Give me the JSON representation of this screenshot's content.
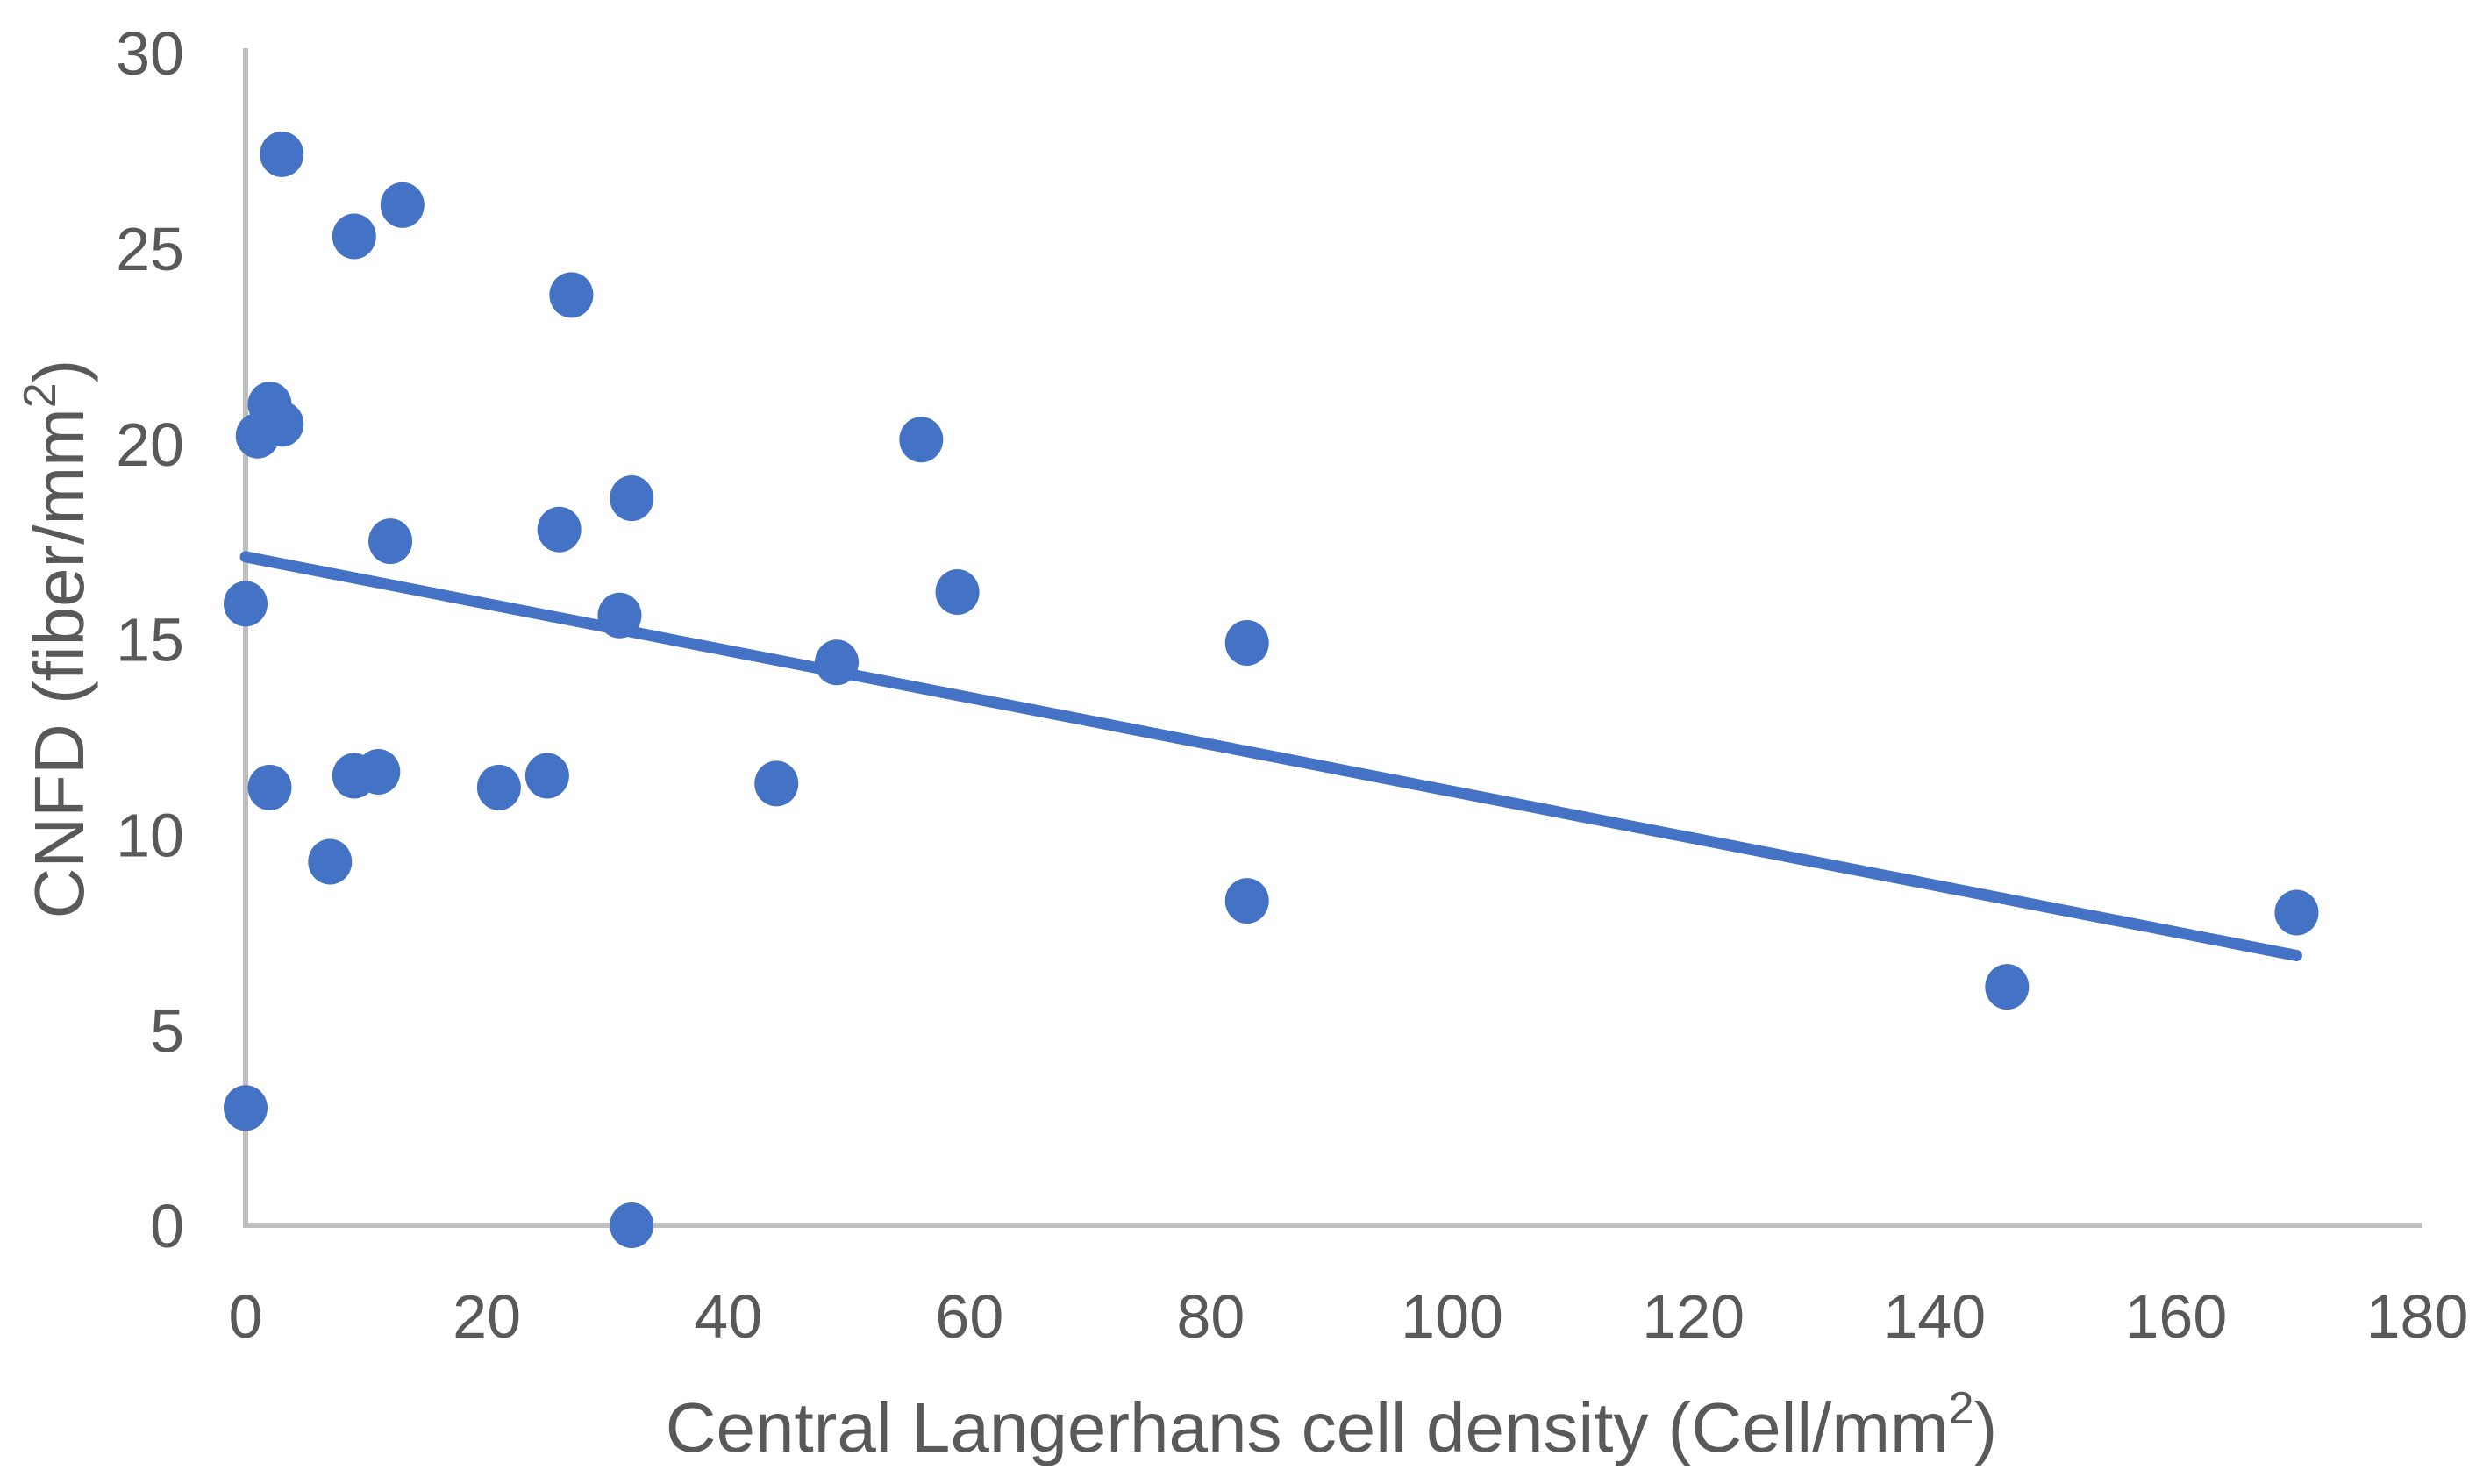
{
  "chart_data": {
    "type": "scatter",
    "title": "",
    "xlabel": {
      "text": "Central Langerhans cell density (Cell/mm",
      "sup": "2",
      "suffix": ")"
    },
    "ylabel": {
      "text": "CNFD (fiber/mm",
      "sup": "2",
      "suffix": ")"
    },
    "xlim": [
      0,
      180
    ],
    "ylim": [
      0,
      30
    ],
    "x_ticks": [
      0,
      20,
      40,
      60,
      80,
      100,
      120,
      140,
      160,
      180
    ],
    "y_ticks": [
      0,
      5,
      10,
      15,
      20,
      25,
      30
    ],
    "grid": false,
    "legend": "none",
    "marker_shape": "circle",
    "points": [
      {
        "x": 3,
        "y": 27.4
      },
      {
        "x": 9,
        "y": 25.3
      },
      {
        "x": 13,
        "y": 26.1
      },
      {
        "x": 27,
        "y": 23.8
      },
      {
        "x": 2,
        "y": 21.0
      },
      {
        "x": 3,
        "y": 20.5
      },
      {
        "x": 1,
        "y": 20.2
      },
      {
        "x": 56,
        "y": 20.1
      },
      {
        "x": 32,
        "y": 18.6
      },
      {
        "x": 26,
        "y": 17.8
      },
      {
        "x": 12,
        "y": 17.5
      },
      {
        "x": 59,
        "y": 16.2
      },
      {
        "x": 0,
        "y": 15.9
      },
      {
        "x": 31,
        "y": 15.6
      },
      {
        "x": 83,
        "y": 14.9
      },
      {
        "x": 49,
        "y": 14.4
      },
      {
        "x": 2,
        "y": 11.2
      },
      {
        "x": 9,
        "y": 11.5
      },
      {
        "x": 11,
        "y": 11.6
      },
      {
        "x": 21,
        "y": 11.2
      },
      {
        "x": 25,
        "y": 11.5
      },
      {
        "x": 44,
        "y": 11.3
      },
      {
        "x": 7,
        "y": 9.3
      },
      {
        "x": 83,
        "y": 8.3
      },
      {
        "x": 170,
        "y": 8.0
      },
      {
        "x": 146,
        "y": 6.1
      },
      {
        "x": 0,
        "y": 3.0
      },
      {
        "x": 32,
        "y": 0
      }
    ],
    "trendline": {
      "x1": 0,
      "y1": 17.1,
      "x2": 170,
      "y2": 6.9
    },
    "colors": {
      "marker": "#4472C4",
      "trend": "#4472C4",
      "axis": "#BFBFBF",
      "text": "#595959"
    }
  }
}
